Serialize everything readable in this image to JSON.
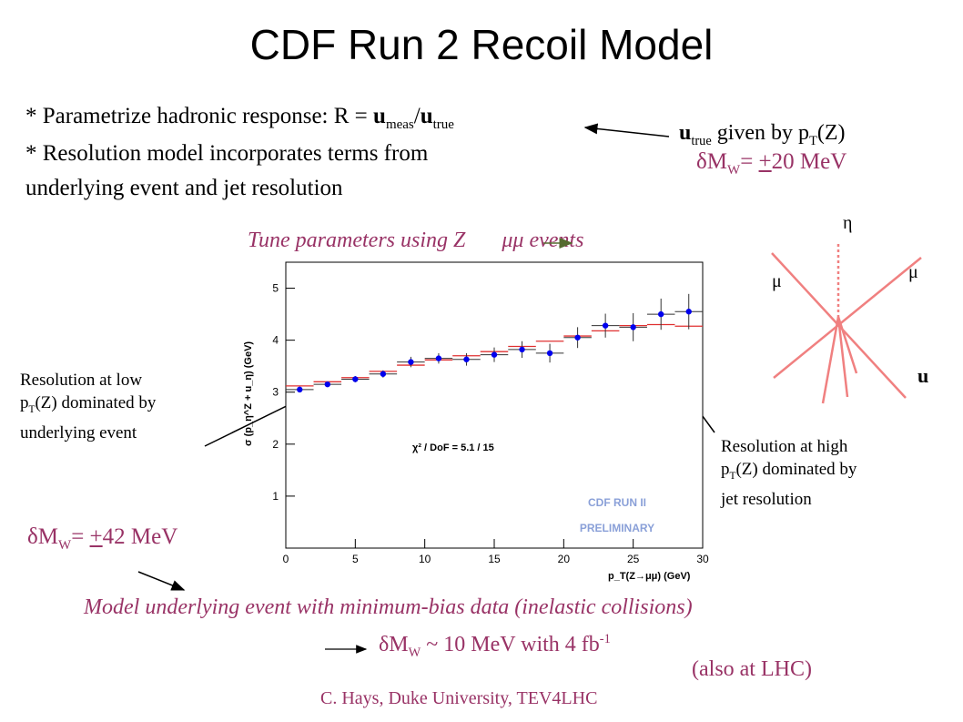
{
  "slide": {
    "title": "CDF Run 2 Recoil Model",
    "bullet1": {
      "text": "* Parametrize hadronic response:  R = ",
      "u_meas": "u",
      "meas_sub": "meas",
      "slash": "/",
      "u_true": "u",
      "true_sub": "true"
    },
    "bullet2_line1": "* Resolution model incorporates terms from",
    "bullet2_line2": "underlying event and jet resolution",
    "utrue_note": {
      "u": "u",
      "sub": "true",
      "given": " given by p",
      "T": "T",
      "Z": "(Z)"
    },
    "dmw_20": {
      "delta": "δM",
      "W": "W",
      "rest_pre": "= ",
      "pm": "+",
      "val": "20 MeV"
    },
    "tune": {
      "pre": "Tune parameters using Z",
      "post": "μμ events"
    },
    "low_note": {
      "l1": "Resolution at low",
      "l2_pre": "p",
      "l2_T": "T",
      "l2_post": "(Z) dominated by",
      "l3": "underlying event"
    },
    "high_note": {
      "l1": "Resolution at high",
      "l2_pre": "p",
      "l2_T": "T",
      "l2_post": "(Z) dominated by",
      "l3": "jet resolution"
    },
    "dmw_42": {
      "delta": "δM",
      "W": "W",
      "rest_pre": "= ",
      "pm": "+",
      "val": "42 MeV"
    },
    "model_line": "Model underlying event with minimum-bias data (inelastic collisions)",
    "dmw_10": {
      "delta": "δM",
      "W": "W",
      "rest": " ~ 10 MeV with 4 fb",
      "exp": "-1"
    },
    "lhc": "(also at LHC)",
    "footer": "C. Hays, Duke University, TEV4LHC",
    "diagram": {
      "eta": "η",
      "mu_left": "μ",
      "mu_right": "μ",
      "u": "u"
    }
  },
  "colors": {
    "maroon": "#993366",
    "data_points": "#0000ee",
    "model_lines": "#e03030",
    "arrow_green": "#556b2f",
    "diagram_lines": "#f08080",
    "watermark": "#8aa0d8"
  },
  "chart_data": {
    "type": "scatter",
    "ylabel": "σ (p_η^Z + u_η) (GeV)",
    "xlabel": "p_T(Z→μμ) (GeV)",
    "xlim": [
      0,
      30
    ],
    "ylim": [
      0,
      5.5
    ],
    "xticks": [
      "0",
      "5",
      "10",
      "15",
      "20",
      "25",
      "30"
    ],
    "yticks": [
      "1",
      "2",
      "3",
      "4",
      "5"
    ],
    "annotation": "χ² / DoF = 5.1 / 15",
    "watermark_l1": "CDF RUN II",
    "watermark_l2": "PRELIMINARY",
    "series": [
      {
        "x": [
          1,
          3,
          5,
          7,
          9,
          11,
          13,
          15,
          17,
          19,
          21,
          23,
          25,
          27,
          29
        ],
        "values": [
          3.05,
          3.15,
          3.25,
          3.35,
          3.58,
          3.65,
          3.63,
          3.72,
          3.82,
          3.75,
          4.05,
          4.28,
          4.25,
          4.5,
          4.55
        ],
        "errors": [
          0.05,
          0.05,
          0.06,
          0.07,
          0.1,
          0.1,
          0.12,
          0.14,
          0.16,
          0.18,
          0.2,
          0.23,
          0.27,
          0.3,
          0.34
        ]
      },
      {
        "x": [
          1,
          3,
          5,
          7,
          9,
          11,
          13,
          15,
          17,
          19,
          21,
          23,
          25,
          27,
          29
        ],
        "values": [
          3.12,
          3.2,
          3.28,
          3.4,
          3.52,
          3.62,
          3.7,
          3.78,
          3.88,
          3.98,
          4.08,
          4.18,
          4.28,
          4.3,
          4.27
        ]
      }
    ]
  }
}
